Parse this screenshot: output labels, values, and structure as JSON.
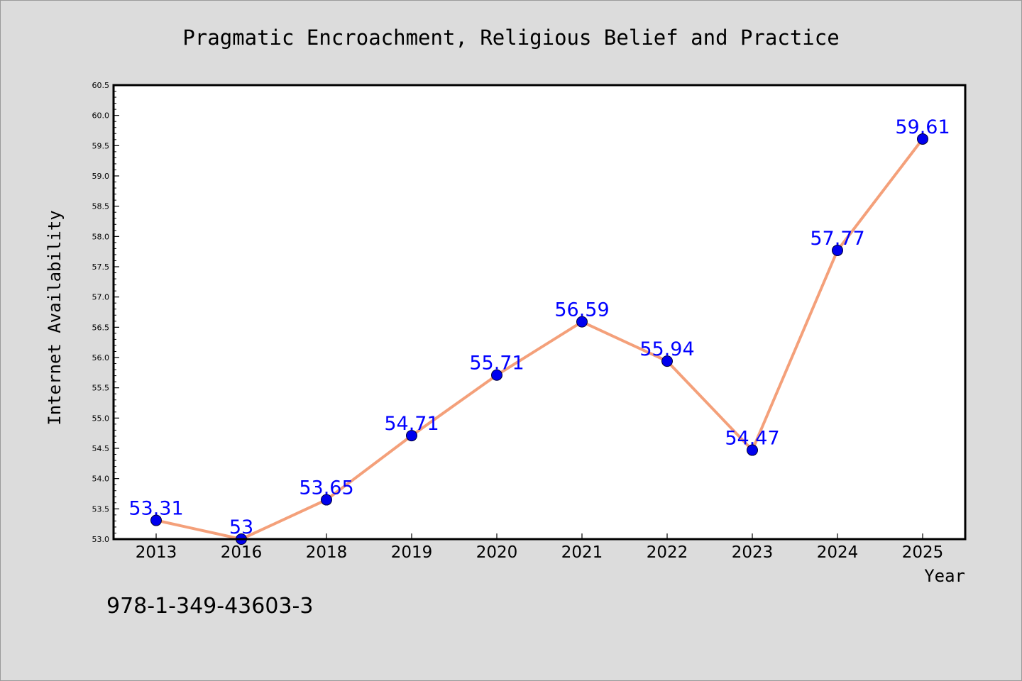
{
  "chart_data": {
    "type": "line",
    "title": "Pragmatic Encroachment, Religious Belief and Practice",
    "xlabel": "Year",
    "ylabel": "Internet Availability",
    "categories": [
      "2013",
      "2016",
      "2018",
      "2019",
      "2020",
      "2021",
      "2022",
      "2023",
      "2024",
      "2025"
    ],
    "series": [
      {
        "values": [
          53.31,
          53.0,
          53.65,
          54.71,
          55.71,
          56.59,
          55.94,
          54.47,
          57.77,
          59.61
        ],
        "labels": [
          "53.31",
          "53",
          "53.65",
          "54.71",
          "55.71",
          "56.59",
          "55.94",
          "54.47",
          "57.77",
          "59.61"
        ]
      }
    ],
    "ylim": [
      53.0,
      60.5
    ],
    "yticks": [
      "53.0",
      "53.5",
      "54.0",
      "54.5",
      "55.0",
      "55.5",
      "56.0",
      "56.5",
      "57.0",
      "57.5",
      "58.0",
      "58.5",
      "59.0",
      "59.5",
      "60.0",
      "60.5"
    ],
    "grid": false,
    "line_color": "#f4a07a",
    "marker_color": "#0000ee",
    "label_color": "#0000ff",
    "background_color": "#dcdcdc",
    "plot_background": "#ffffff"
  },
  "footer": {
    "isbn": "978-1-349-43603-3"
  }
}
